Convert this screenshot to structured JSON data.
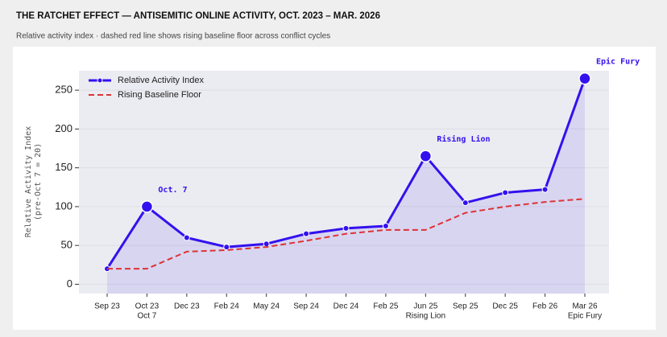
{
  "chart_data": {
    "type": "line",
    "title": "THE RATCHET EFFECT — ANTISEMITIC ONLINE ACTIVITY, OCT. 2023 – MAR. 2026",
    "subtitle": "Relative activity index · dashed red line shows rising baseline floor across conflict cycles",
    "ylabel": "Relative Activity Index",
    "ylabel_note": "(pre-Oct 7 = 20)",
    "categories": [
      "Sep 23",
      "Oct 23",
      "Dec 23",
      "Feb 24",
      "May 24",
      "Sep 24",
      "Dec 24",
      "Feb 25",
      "Jun 25",
      "Sep 25",
      "Dec 25",
      "Feb 26",
      "Mar 26"
    ],
    "category_sublabels": [
      null,
      "Oct 7",
      null,
      null,
      null,
      null,
      null,
      null,
      "Rising Lion",
      null,
      null,
      null,
      "Epic Fury"
    ],
    "series": [
      {
        "name": "Relative Activity Index",
        "color": "#3311ee",
        "style": "solid",
        "fill": true,
        "values": [
          20,
          100,
          60,
          48,
          52,
          65,
          72,
          75,
          165,
          105,
          118,
          122,
          265
        ]
      },
      {
        "name": "Rising Baseline Floor",
        "color": "#dd3333",
        "style": "dashed",
        "values": [
          20,
          20,
          42,
          44,
          48,
          56,
          65,
          70,
          70,
          92,
          100,
          106,
          110
        ]
      }
    ],
    "annotations": [
      {
        "text": "Oct. 7",
        "index": 1
      },
      {
        "text": "Rising Lion",
        "index": 8
      },
      {
        "text": "Epic Fury",
        "index": 12
      }
    ],
    "ylim": [
      -12,
      275
    ],
    "yticks": [
      0,
      50,
      100,
      150,
      200,
      250
    ],
    "grid": true,
    "legend": "upper left"
  }
}
